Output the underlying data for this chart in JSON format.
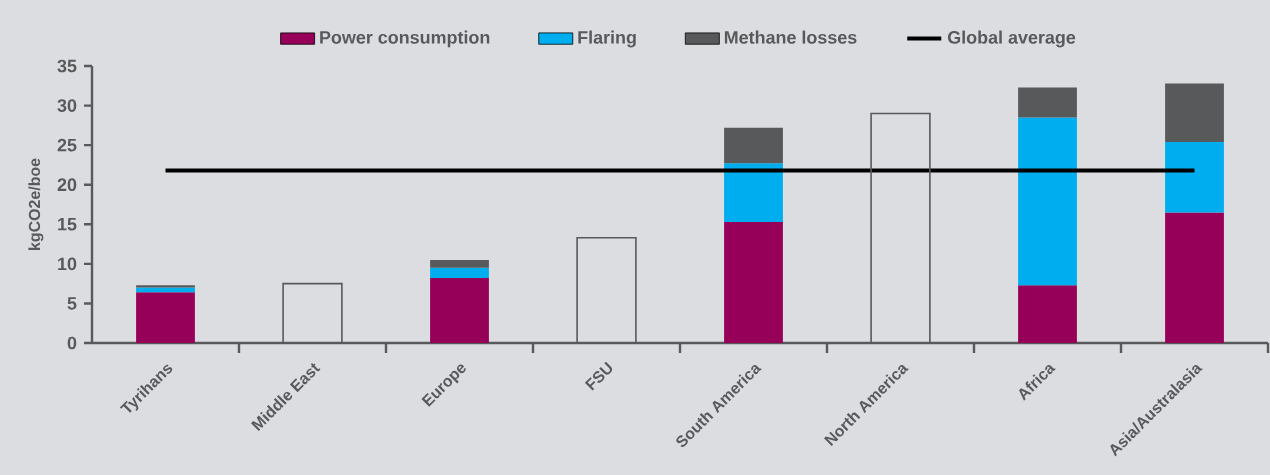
{
  "chart_data": {
    "type": "bar",
    "stacked": true,
    "ylabel": "kgCO2e/boe",
    "categories": [
      "Tyrihans",
      "Middle East",
      "Europe",
      "FSU",
      "South America",
      "North America",
      "Africa",
      "Asia/Australasia"
    ],
    "ylim": [
      0,
      35
    ],
    "yticks": [
      0,
      5,
      10,
      15,
      20,
      25,
      30,
      35
    ],
    "grid": false,
    "legend": "top",
    "series": [
      {
        "name": "Power consumption",
        "color": "#970059",
        "values": [
          6.4,
          null,
          8.2,
          null,
          15.3,
          null,
          7.3,
          16.5
        ]
      },
      {
        "name": "Flaring",
        "color": "#00adef",
        "values": [
          0.6,
          null,
          1.3,
          null,
          7.4,
          null,
          21.2,
          8.9
        ]
      },
      {
        "name": "Methane losses",
        "color": "#58595b",
        "values": [
          0.3,
          null,
          1.0,
          null,
          4.5,
          null,
          3.8,
          7.4
        ]
      },
      {
        "name": "Global average",
        "type": "line",
        "color": "#000000",
        "values": [
          21.8,
          21.8,
          21.8,
          21.8,
          21.8,
          21.8,
          21.8,
          21.8
        ]
      },
      {
        "color": "#58595b",
        "values": [
          null,
          7.5,
          null,
          13.3,
          null,
          29.0,
          null,
          null
        ]
      }
    ]
  }
}
